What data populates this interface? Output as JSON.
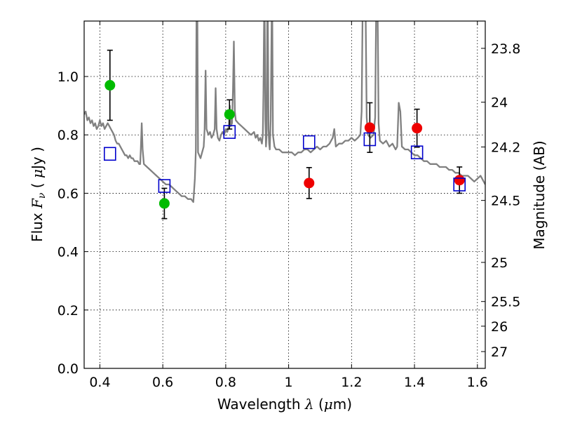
{
  "chart_data": {
    "type": "scatter",
    "xlabel": {
      "prefix": "Wavelength  ",
      "symbol": "λ",
      "suffix": " (",
      "unit_mu": "μ",
      "unit_rest": "m)"
    },
    "ylabel": {
      "prefix": "Flux  ",
      "symbol": "F",
      "subscript": "ν",
      "mid": "  ( ",
      "unit_mu": "μ",
      "unit_rest": "Jy )"
    },
    "y2label": "Magnitude (AB)",
    "xlim": [
      0.35,
      1.625
    ],
    "ylim": [
      0.0,
      1.19
    ],
    "x_ticks": [
      0.4,
      0.6,
      0.8,
      1.0,
      1.2,
      1.4,
      1.6
    ],
    "x_tick_labels": [
      "0.4",
      "0.6",
      "0.8",
      "1",
      "1.2",
      "1.4",
      "1.6"
    ],
    "y_ticks": [
      0.0,
      0.2,
      0.4,
      0.6,
      0.8,
      1.0
    ],
    "y_tick_labels": [
      "0.0",
      "0.2",
      "0.4",
      "0.6",
      "0.8",
      "1.0"
    ],
    "y2_ticks": [
      {
        "label": "23.8",
        "mag": 23.8
      },
      {
        "label": "24",
        "mag": 24.0
      },
      {
        "label": "24.2",
        "mag": 24.2
      },
      {
        "label": "24.5",
        "mag": 24.5
      },
      {
        "label": "25",
        "mag": 25.0
      },
      {
        "label": "25.5",
        "mag": 25.5
      },
      {
        "label": "26",
        "mag": 26.0
      },
      {
        "label": "27",
        "mag": 27.0
      }
    ],
    "grid": true,
    "colors": {
      "model": "#808080",
      "green": "#00bb00",
      "red": "#ee0000",
      "square": "#0000cc",
      "error": "#000000"
    },
    "series": [
      {
        "kind": "line",
        "color_key": "model",
        "points": [
          [
            0.35,
            0.87
          ],
          [
            0.355,
            0.88
          ],
          [
            0.36,
            0.85
          ],
          [
            0.365,
            0.86
          ],
          [
            0.37,
            0.84
          ],
          [
            0.375,
            0.85
          ],
          [
            0.38,
            0.83
          ],
          [
            0.385,
            0.84
          ],
          [
            0.39,
            0.82
          ],
          [
            0.395,
            0.83
          ],
          [
            0.4,
            0.85
          ],
          [
            0.405,
            0.83
          ],
          [
            0.41,
            0.84
          ],
          [
            0.415,
            0.82
          ],
          [
            0.42,
            0.83
          ],
          [
            0.425,
            0.84
          ],
          [
            0.43,
            0.83
          ],
          [
            0.435,
            0.82
          ],
          [
            0.44,
            0.81
          ],
          [
            0.445,
            0.8
          ],
          [
            0.45,
            0.78
          ],
          [
            0.455,
            0.77
          ],
          [
            0.46,
            0.77
          ],
          [
            0.465,
            0.76
          ],
          [
            0.47,
            0.75
          ],
          [
            0.475,
            0.74
          ],
          [
            0.48,
            0.73
          ],
          [
            0.485,
            0.73
          ],
          [
            0.49,
            0.72
          ],
          [
            0.495,
            0.73
          ],
          [
            0.5,
            0.72
          ],
          [
            0.505,
            0.72
          ],
          [
            0.51,
            0.71
          ],
          [
            0.515,
            0.71
          ],
          [
            0.52,
            0.71
          ],
          [
            0.525,
            0.7
          ],
          [
            0.528,
            0.7
          ],
          [
            0.53,
            0.75
          ],
          [
            0.533,
            0.84
          ],
          [
            0.536,
            0.75
          ],
          [
            0.54,
            0.7
          ],
          [
            0.55,
            0.69
          ],
          [
            0.56,
            0.68
          ],
          [
            0.57,
            0.67
          ],
          [
            0.58,
            0.66
          ],
          [
            0.59,
            0.65
          ],
          [
            0.6,
            0.64
          ],
          [
            0.61,
            0.63
          ],
          [
            0.62,
            0.63
          ],
          [
            0.63,
            0.62
          ],
          [
            0.64,
            0.61
          ],
          [
            0.65,
            0.6
          ],
          [
            0.66,
            0.59
          ],
          [
            0.67,
            0.59
          ],
          [
            0.68,
            0.58
          ],
          [
            0.69,
            0.58
          ],
          [
            0.697,
            0.57
          ],
          [
            0.702,
            0.65
          ],
          [
            0.705,
            0.75
          ],
          [
            0.707,
            1.2
          ],
          [
            0.71,
            1.2
          ],
          [
            0.712,
            0.74
          ],
          [
            0.72,
            0.72
          ],
          [
            0.725,
            0.74
          ],
          [
            0.73,
            0.76
          ],
          [
            0.733,
            0.82
          ],
          [
            0.736,
            1.02
          ],
          [
            0.739,
            0.82
          ],
          [
            0.745,
            0.8
          ],
          [
            0.75,
            0.81
          ],
          [
            0.755,
            0.79
          ],
          [
            0.76,
            0.8
          ],
          [
            0.765,
            0.82
          ],
          [
            0.768,
            0.96
          ],
          [
            0.771,
            0.82
          ],
          [
            0.775,
            0.79
          ],
          [
            0.78,
            0.78
          ],
          [
            0.785,
            0.8
          ],
          [
            0.79,
            0.81
          ],
          [
            0.795,
            0.8
          ],
          [
            0.8,
            0.82
          ],
          [
            0.805,
            0.81
          ],
          [
            0.81,
            0.83
          ],
          [
            0.813,
            0.9
          ],
          [
            0.816,
            0.83
          ],
          [
            0.82,
            0.84
          ],
          [
            0.823,
            0.95
          ],
          [
            0.826,
            1.12
          ],
          [
            0.829,
            0.88
          ],
          [
            0.832,
            0.85
          ],
          [
            0.84,
            0.84
          ],
          [
            0.85,
            0.83
          ],
          [
            0.86,
            0.82
          ],
          [
            0.87,
            0.81
          ],
          [
            0.88,
            0.8
          ],
          [
            0.89,
            0.81
          ],
          [
            0.895,
            0.79
          ],
          [
            0.9,
            0.8
          ],
          [
            0.905,
            0.78
          ],
          [
            0.91,
            0.79
          ],
          [
            0.915,
            0.77
          ],
          [
            0.918,
            0.8
          ],
          [
            0.92,
            0.95
          ],
          [
            0.922,
            1.2
          ],
          [
            0.924,
            1.2
          ],
          [
            0.926,
            0.85
          ],
          [
            0.928,
            0.76
          ],
          [
            0.93,
            0.8
          ],
          [
            0.932,
            1.2
          ],
          [
            0.934,
            1.2
          ],
          [
            0.936,
            0.82
          ],
          [
            0.938,
            0.77
          ],
          [
            0.94,
            0.75
          ],
          [
            0.943,
            0.85
          ],
          [
            0.946,
            1.2
          ],
          [
            0.948,
            1.2
          ],
          [
            0.95,
            0.8
          ],
          [
            0.955,
            0.76
          ],
          [
            0.96,
            0.75
          ],
          [
            0.97,
            0.75
          ],
          [
            0.98,
            0.74
          ],
          [
            0.99,
            0.74
          ],
          [
            1.0,
            0.74
          ],
          [
            1.01,
            0.74
          ],
          [
            1.02,
            0.73
          ],
          [
            1.03,
            0.74
          ],
          [
            1.04,
            0.74
          ],
          [
            1.05,
            0.75
          ],
          [
            1.06,
            0.75
          ],
          [
            1.07,
            0.74
          ],
          [
            1.08,
            0.75
          ],
          [
            1.09,
            0.76
          ],
          [
            1.1,
            0.75
          ],
          [
            1.11,
            0.76
          ],
          [
            1.12,
            0.76
          ],
          [
            1.13,
            0.77
          ],
          [
            1.14,
            0.79
          ],
          [
            1.145,
            0.82
          ],
          [
            1.15,
            0.76
          ],
          [
            1.16,
            0.77
          ],
          [
            1.17,
            0.77
          ],
          [
            1.18,
            0.78
          ],
          [
            1.19,
            0.78
          ],
          [
            1.2,
            0.79
          ],
          [
            1.21,
            0.78
          ],
          [
            1.22,
            0.79
          ],
          [
            1.228,
            0.8
          ],
          [
            1.232,
            0.88
          ],
          [
            1.235,
            1.2
          ],
          [
            1.24,
            1.2
          ],
          [
            1.245,
            1.2
          ],
          [
            1.248,
            0.86
          ],
          [
            1.252,
            0.8
          ],
          [
            1.26,
            0.79
          ],
          [
            1.27,
            0.8
          ],
          [
            1.275,
            0.86
          ],
          [
            1.278,
            1.2
          ],
          [
            1.283,
            1.2
          ],
          [
            1.286,
            0.84
          ],
          [
            1.29,
            0.78
          ],
          [
            1.3,
            0.77
          ],
          [
            1.31,
            0.78
          ],
          [
            1.32,
            0.76
          ],
          [
            1.33,
            0.77
          ],
          [
            1.34,
            0.75
          ],
          [
            1.345,
            0.76
          ],
          [
            1.35,
            0.91
          ],
          [
            1.355,
            0.88
          ],
          [
            1.36,
            0.76
          ],
          [
            1.37,
            0.75
          ],
          [
            1.38,
            0.75
          ],
          [
            1.39,
            0.74
          ],
          [
            1.4,
            0.73
          ],
          [
            1.41,
            0.73
          ],
          [
            1.42,
            0.72
          ],
          [
            1.43,
            0.71
          ],
          [
            1.44,
            0.71
          ],
          [
            1.45,
            0.7
          ],
          [
            1.46,
            0.7
          ],
          [
            1.47,
            0.7
          ],
          [
            1.48,
            0.69
          ],
          [
            1.49,
            0.69
          ],
          [
            1.5,
            0.69
          ],
          [
            1.51,
            0.68
          ],
          [
            1.52,
            0.68
          ],
          [
            1.53,
            0.67
          ],
          [
            1.54,
            0.67
          ],
          [
            1.55,
            0.66
          ],
          [
            1.56,
            0.66
          ],
          [
            1.57,
            0.66
          ],
          [
            1.58,
            0.65
          ],
          [
            1.59,
            0.64
          ],
          [
            1.6,
            0.65
          ],
          [
            1.61,
            0.66
          ],
          [
            1.615,
            0.65
          ],
          [
            1.625,
            0.63
          ]
        ]
      },
      {
        "kind": "circles_with_errors",
        "color_key": "green",
        "points": [
          {
            "x": 0.432,
            "y": 0.97,
            "err": 0.12
          },
          {
            "x": 0.605,
            "y": 0.565,
            "err": 0.052
          },
          {
            "x": 0.812,
            "y": 0.87,
            "err": 0.05
          }
        ]
      },
      {
        "kind": "circles_with_errors",
        "color_key": "red",
        "points": [
          {
            "x": 1.065,
            "y": 0.635,
            "err": 0.053
          },
          {
            "x": 1.258,
            "y": 0.825,
            "err": 0.085
          },
          {
            "x": 1.408,
            "y": 0.823,
            "err": 0.065
          },
          {
            "x": 1.543,
            "y": 0.645,
            "err": 0.045
          }
        ]
      },
      {
        "kind": "open_squares",
        "color_key": "square",
        "points": [
          {
            "x": 0.432,
            "y": 0.735
          },
          {
            "x": 0.605,
            "y": 0.625
          },
          {
            "x": 0.812,
            "y": 0.81
          },
          {
            "x": 1.065,
            "y": 0.775
          },
          {
            "x": 1.258,
            "y": 0.785
          },
          {
            "x": 1.408,
            "y": 0.74
          },
          {
            "x": 1.543,
            "y": 0.63
          }
        ]
      }
    ]
  }
}
